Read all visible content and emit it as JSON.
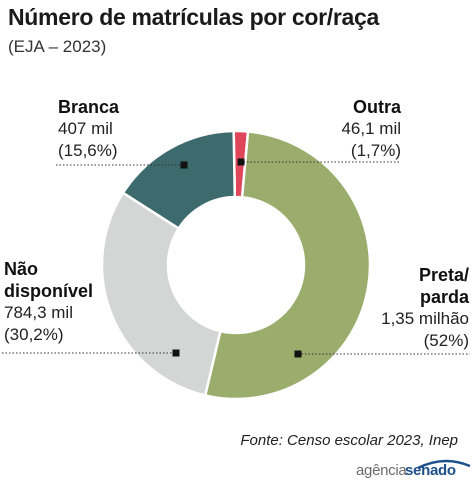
{
  "header": {
    "title": "Número de matrículas por cor/raça",
    "subtitle": "(EJA – 2023)"
  },
  "chart_data": {
    "type": "pie",
    "donut": true,
    "title": "Número de matrículas por cor/raça",
    "subtitle": "(EJA – 2023)",
    "slices": [
      {
        "name": "Outra",
        "label_lines": [
          "Outra"
        ],
        "value_text": "46,1 mil",
        "pct_text": "(1,7%)",
        "value": 46100,
        "pct": 1.7,
        "color": "#e0465a"
      },
      {
        "name": "Preta/parda",
        "label_lines": [
          "Preta/",
          "parda"
        ],
        "value_text": "1,35 milhão",
        "pct_text": "(52%)",
        "value": 1350000,
        "pct": 52,
        "color": "#9aad6c"
      },
      {
        "name": "Não disponível",
        "label_lines": [
          "Não",
          "disponível"
        ],
        "value_text": "784,3 mil",
        "pct_text": "(30,2%)",
        "value": 784300,
        "pct": 30.2,
        "color": "#d4d6d5"
      },
      {
        "name": "Branca",
        "label_lines": [
          "Branca"
        ],
        "value_text": "407 mil",
        "pct_text": "(15,6%)",
        "value": 407000,
        "pct": 15.6,
        "color": "#3d6b6d"
      }
    ]
  },
  "footer": {
    "source": "Fonte:  Censo escolar 2023, Inep",
    "logo_agencia": "agência",
    "logo_senado": "senado"
  }
}
